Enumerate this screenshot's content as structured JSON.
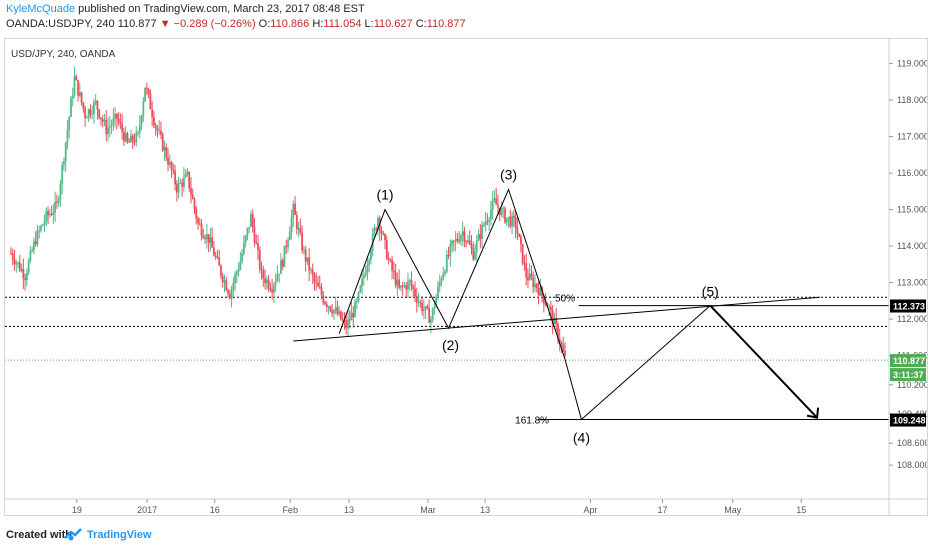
{
  "header": {
    "author": "KyleMcQuade",
    "published": "published on TradingView.com, March 23, 2017 08:48 EST",
    "symbol": "OANDA:USDJPY, 240",
    "last": "110.877",
    "change": "−0.289 (−0.26%)",
    "open_label": "O:",
    "open": "110.866",
    "high_label": "H:",
    "high": "111.054",
    "low_label": "L:",
    "low": "110.627",
    "close_label": "C:",
    "close": "110.877"
  },
  "chart_data": {
    "type": "candlestick",
    "title": "USD/JPY, 240, OANDA",
    "x_ticks": [
      "19",
      "2017",
      "16",
      "Feb",
      "13",
      "Mar",
      "13",
      "Apr",
      "17",
      "May",
      "15"
    ],
    "y_ticks": [
      108.0,
      108.6,
      109.4,
      110.2,
      111.0,
      112.0,
      113.0,
      114.0,
      115.0,
      116.0,
      117.0,
      118.0,
      119.0
    ],
    "y_tick_labels": [
      "108.000",
      "108.600",
      "109.400",
      "110.200",
      "111.000",
      "112.000",
      "113.000",
      "114.000",
      "115.000",
      "116.000",
      "117.000",
      "118.000",
      "119.000"
    ],
    "ylim": [
      107.4,
      119.4
    ],
    "colors": {
      "up": "#53b987",
      "down": "#eb4d5c",
      "annotation": "#000000",
      "price_line": "#4caf50",
      "price_badge": "#4caf50"
    },
    "price_path": [
      {
        "bar": 0,
        "price": 113.8
      },
      {
        "bar": 4,
        "price": 113.2
      },
      {
        "bar": 7,
        "price": 114.2
      },
      {
        "bar": 10,
        "price": 114.8
      },
      {
        "bar": 13,
        "price": 115.1
      },
      {
        "bar": 16,
        "price": 117.2
      },
      {
        "bar": 18,
        "price": 118.6
      },
      {
        "bar": 21,
        "price": 117.6
      },
      {
        "bar": 24,
        "price": 117.9
      },
      {
        "bar": 27,
        "price": 117.2
      },
      {
        "bar": 30,
        "price": 117.5
      },
      {
        "bar": 33,
        "price": 116.8
      },
      {
        "bar": 36,
        "price": 117.0
      },
      {
        "bar": 38,
        "price": 118.4
      },
      {
        "bar": 41,
        "price": 117.3
      },
      {
        "bar": 44,
        "price": 116.5
      },
      {
        "bar": 47,
        "price": 115.6
      },
      {
        "bar": 50,
        "price": 115.9
      },
      {
        "bar": 53,
        "price": 114.6
      },
      {
        "bar": 56,
        "price": 114.2
      },
      {
        "bar": 59,
        "price": 113.4
      },
      {
        "bar": 62,
        "price": 112.7
      },
      {
        "bar": 65,
        "price": 113.6
      },
      {
        "bar": 68,
        "price": 114.8
      },
      {
        "bar": 71,
        "price": 113.2
      },
      {
        "bar": 74,
        "price": 112.9
      },
      {
        "bar": 77,
        "price": 113.6
      },
      {
        "bar": 80,
        "price": 115.0
      },
      {
        "bar": 83,
        "price": 113.8
      },
      {
        "bar": 86,
        "price": 113.0
      },
      {
        "bar": 89,
        "price": 112.5
      },
      {
        "bar": 92,
        "price": 112.2
      },
      {
        "bar": 95,
        "price": 111.8
      },
      {
        "bar": 98,
        "price": 112.4
      },
      {
        "bar": 101,
        "price": 113.6
      },
      {
        "bar": 104,
        "price": 114.8
      },
      {
        "bar": 107,
        "price": 113.6
      },
      {
        "bar": 110,
        "price": 112.8
      },
      {
        "bar": 113,
        "price": 113.0
      },
      {
        "bar": 116,
        "price": 112.4
      },
      {
        "bar": 119,
        "price": 112.0
      },
      {
        "bar": 122,
        "price": 113.2
      },
      {
        "bar": 125,
        "price": 114.0
      },
      {
        "bar": 128,
        "price": 114.4
      },
      {
        "bar": 131,
        "price": 113.8
      },
      {
        "bar": 134,
        "price": 114.6
      },
      {
        "bar": 137,
        "price": 115.2
      },
      {
        "bar": 140,
        "price": 114.8
      },
      {
        "bar": 143,
        "price": 114.6
      },
      {
        "bar": 146,
        "price": 113.2
      },
      {
        "bar": 149,
        "price": 112.9
      },
      {
        "bar": 152,
        "price": 112.4
      },
      {
        "bar": 155,
        "price": 111.6
      },
      {
        "bar": 157,
        "price": 110.9
      }
    ],
    "horizontal_levels": [
      {
        "price": 112.6,
        "style": "dotted"
      },
      {
        "price": 111.8,
        "style": "dotted"
      }
    ],
    "current_price": {
      "value": 110.877,
      "label": "110.877",
      "timer": "3:11:37"
    },
    "level_badges": [
      {
        "value": 112.373,
        "label": "112.373"
      },
      {
        "value": 109.248,
        "label": "109.248"
      }
    ],
    "wave_labels": [
      "(1)",
      "(2)",
      "(3)",
      "(4)",
      "(5)"
    ],
    "fib_labels": [
      "50%",
      "161.8%"
    ]
  },
  "footer": {
    "created": "Created with",
    "brand": "TradingView"
  }
}
